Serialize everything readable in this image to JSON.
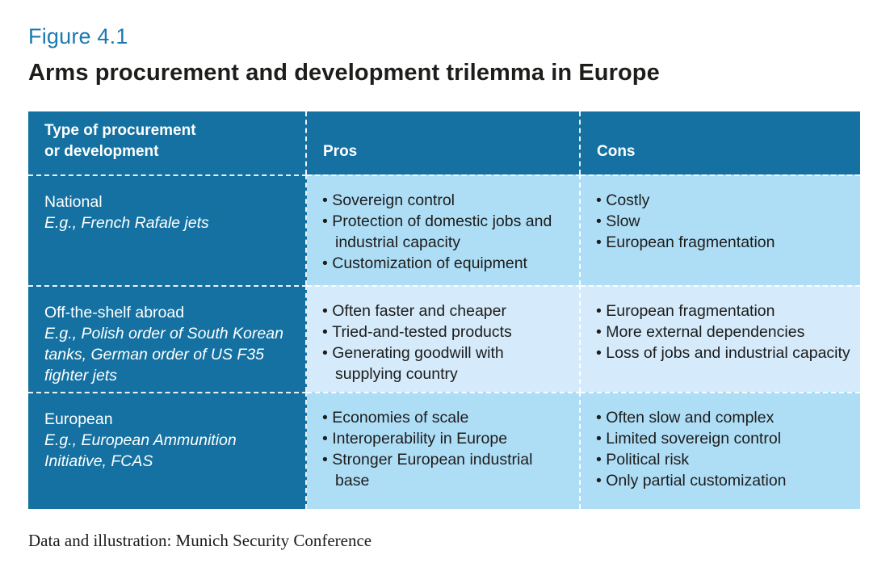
{
  "colors": {
    "accent_dark_blue": "#1471a1",
    "row_tint_strong": "#aeddf6",
    "row_tint_light": "#d5eafa",
    "figure_label_blue": "#1a7ab2",
    "text_dark": "#1d1d1b"
  },
  "figure": {
    "label": "Figure 4.1",
    "title": "Arms procurement and development trilemma in Europe"
  },
  "table": {
    "header": {
      "type": "Type of procurement\nor development",
      "pros": "Pros",
      "cons": "Cons"
    },
    "rows": [
      {
        "type": "National",
        "example": "E.g., French Rafale jets",
        "pros": [
          "Sovereign control",
          "Protection of domestic jobs and industrial capacity",
          "Customization of equipment"
        ],
        "cons": [
          "Costly",
          "Slow",
          "European fragmentation"
        ]
      },
      {
        "type": "Off-the-shelf abroad",
        "example": "E.g., Polish order of South Korean tanks, German order of US F35 fighter jets",
        "pros": [
          "Often faster and cheaper",
          "Tried-and-tested products",
          "Generating goodwill with supplying country"
        ],
        "cons": [
          "European fragmentation",
          "More external dependencies",
          "Loss of jobs and industrial capacity"
        ]
      },
      {
        "type": "European",
        "example": "E.g., European Ammunition Initiative, FCAS",
        "pros": [
          "Economies of scale",
          "Interoperability in Europe",
          "Stronger European industrial base"
        ],
        "cons": [
          "Often slow and complex",
          "Limited sovereign control",
          "Political risk",
          "Only partial customization"
        ]
      }
    ]
  },
  "footer": {
    "credit": "Data and illustration: Munich Security Conference"
  }
}
